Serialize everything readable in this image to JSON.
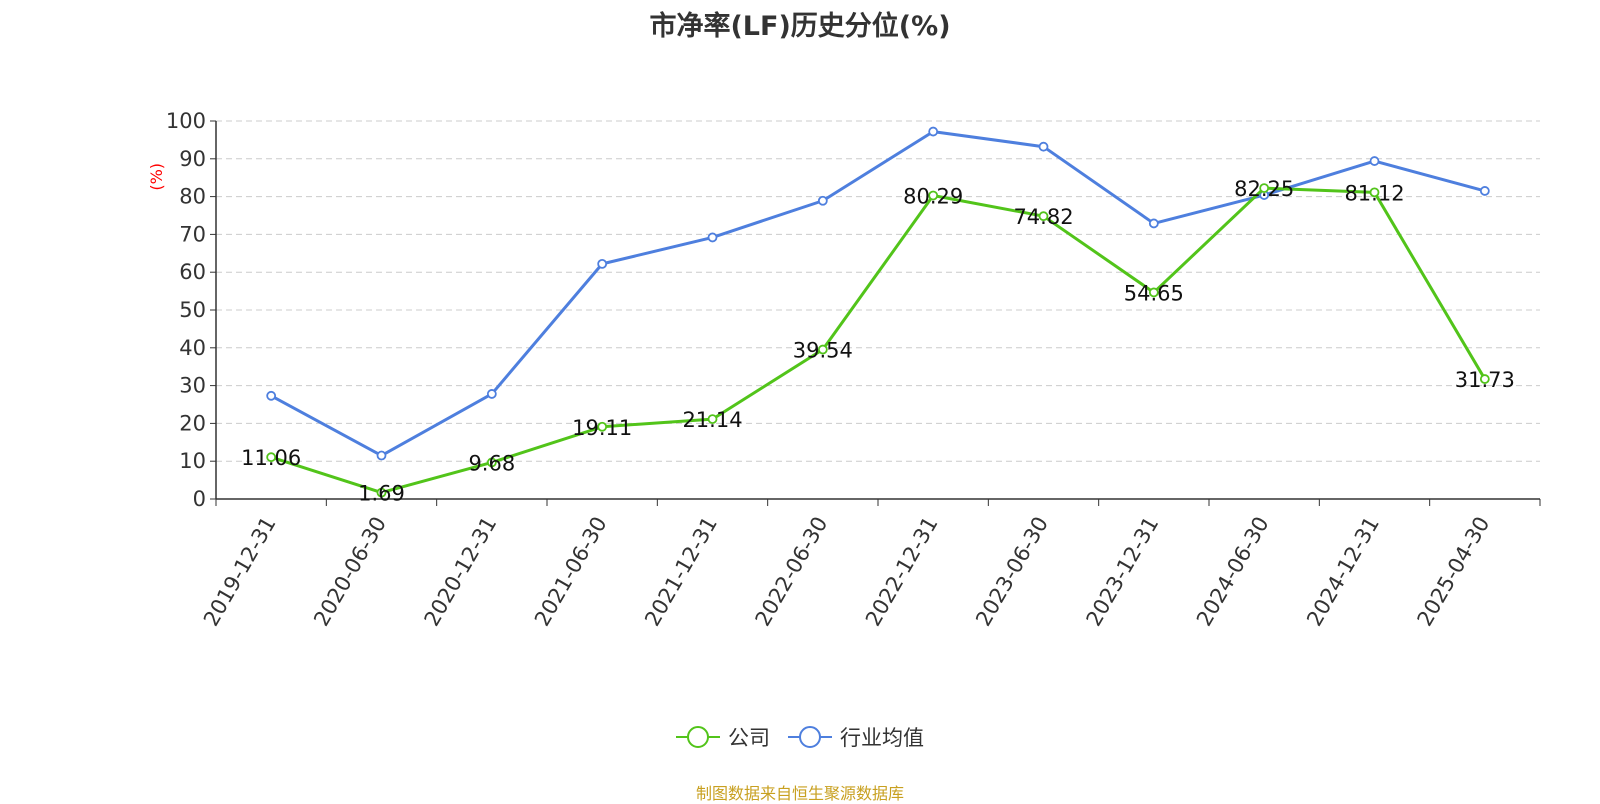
{
  "title": "市净率(LF)历史分位(%)",
  "source": "制图数据来自恒生聚源数据库",
  "colors": {
    "company": "#52c41a",
    "industry": "#4e7fde",
    "ylabel": "#ff0000",
    "grid": "#cccccc",
    "axis": "#333333"
  },
  "chart_data": {
    "type": "line",
    "title": "市净率(LF)历史分位(%)",
    "xlabel": "",
    "ylabel": "(%)",
    "ylim": [
      0,
      100
    ],
    "yticks": [
      0,
      10,
      20,
      30,
      40,
      50,
      60,
      70,
      80,
      90,
      100
    ],
    "grid": true,
    "legend_position": "bottom",
    "categories": [
      "2019-12-31",
      "2020-06-30",
      "2020-12-31",
      "2021-06-30",
      "2021-12-31",
      "2022-06-30",
      "2022-12-31",
      "2023-06-30",
      "2023-12-31",
      "2024-06-30",
      "2024-12-31",
      "2025-04-30"
    ],
    "series": [
      {
        "name": "公司",
        "color": "#52c41a",
        "show_labels": true,
        "values": [
          11.06,
          1.69,
          9.68,
          19.11,
          21.14,
          39.54,
          80.29,
          74.82,
          54.65,
          82.25,
          81.12,
          31.73
        ]
      },
      {
        "name": "行业均值",
        "color": "#4e7fde",
        "show_labels": false,
        "values": [
          27.3,
          11.5,
          27.8,
          62.2,
          69.2,
          78.9,
          97.2,
          93.2,
          72.9,
          80.4,
          89.4,
          81.5
        ]
      }
    ]
  }
}
